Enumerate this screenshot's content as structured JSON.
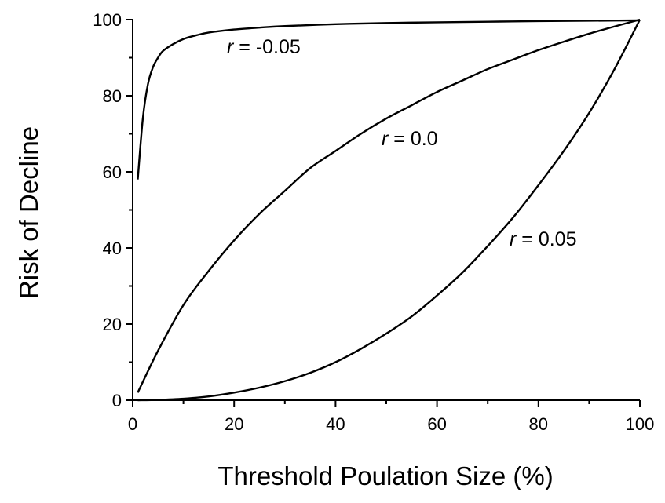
{
  "chart_data": {
    "type": "line",
    "title": "",
    "xlabel": "Threshold Poulation Size (%)",
    "ylabel": "Risk of Decline",
    "xlim": [
      0,
      100
    ],
    "ylim": [
      0,
      100
    ],
    "x_ticks": [
      0,
      20,
      40,
      60,
      80,
      100
    ],
    "y_ticks": [
      0,
      20,
      40,
      60,
      80,
      100
    ],
    "grid": false,
    "series": [
      {
        "name": "r = -0.05",
        "label_symbol": "r",
        "label_value": "= -0.05",
        "x": [
          1,
          2,
          3,
          4,
          5,
          6,
          8,
          10,
          12,
          15,
          20,
          25,
          30,
          40,
          50,
          60,
          70,
          80,
          90,
          100
        ],
        "y": [
          58,
          74,
          83,
          87.5,
          90,
          91.8,
          93.6,
          94.9,
          95.7,
          96.6,
          97.4,
          97.9,
          98.3,
          98.8,
          99.1,
          99.3,
          99.45,
          99.6,
          99.7,
          99.8
        ]
      },
      {
        "name": "r = 0.0",
        "label_symbol": "r",
        "label_value": "= 0.0",
        "x": [
          1,
          5,
          10,
          15,
          20,
          25,
          30,
          35,
          40,
          45,
          50,
          55,
          60,
          65,
          70,
          75,
          80,
          85,
          90,
          95,
          100
        ],
        "y": [
          2,
          13,
          25,
          34,
          42,
          49,
          55,
          61,
          65.5,
          70,
          74,
          77.5,
          81,
          84,
          87,
          89.5,
          92,
          94.2,
          96.3,
          98.2,
          100
        ]
      },
      {
        "name": "r = 0.05",
        "label_symbol": "r",
        "label_value": "= 0.05",
        "x": [
          1,
          5,
          10,
          15,
          20,
          25,
          30,
          35,
          40,
          45,
          50,
          55,
          60,
          65,
          70,
          75,
          80,
          85,
          90,
          95,
          100
        ],
        "y": [
          0,
          0.1,
          0.4,
          1,
          2,
          3.3,
          5,
          7.2,
          10,
          13.5,
          17.5,
          22,
          27.5,
          33.5,
          40.5,
          48,
          56.5,
          65.5,
          75.5,
          87,
          100
        ]
      }
    ]
  }
}
